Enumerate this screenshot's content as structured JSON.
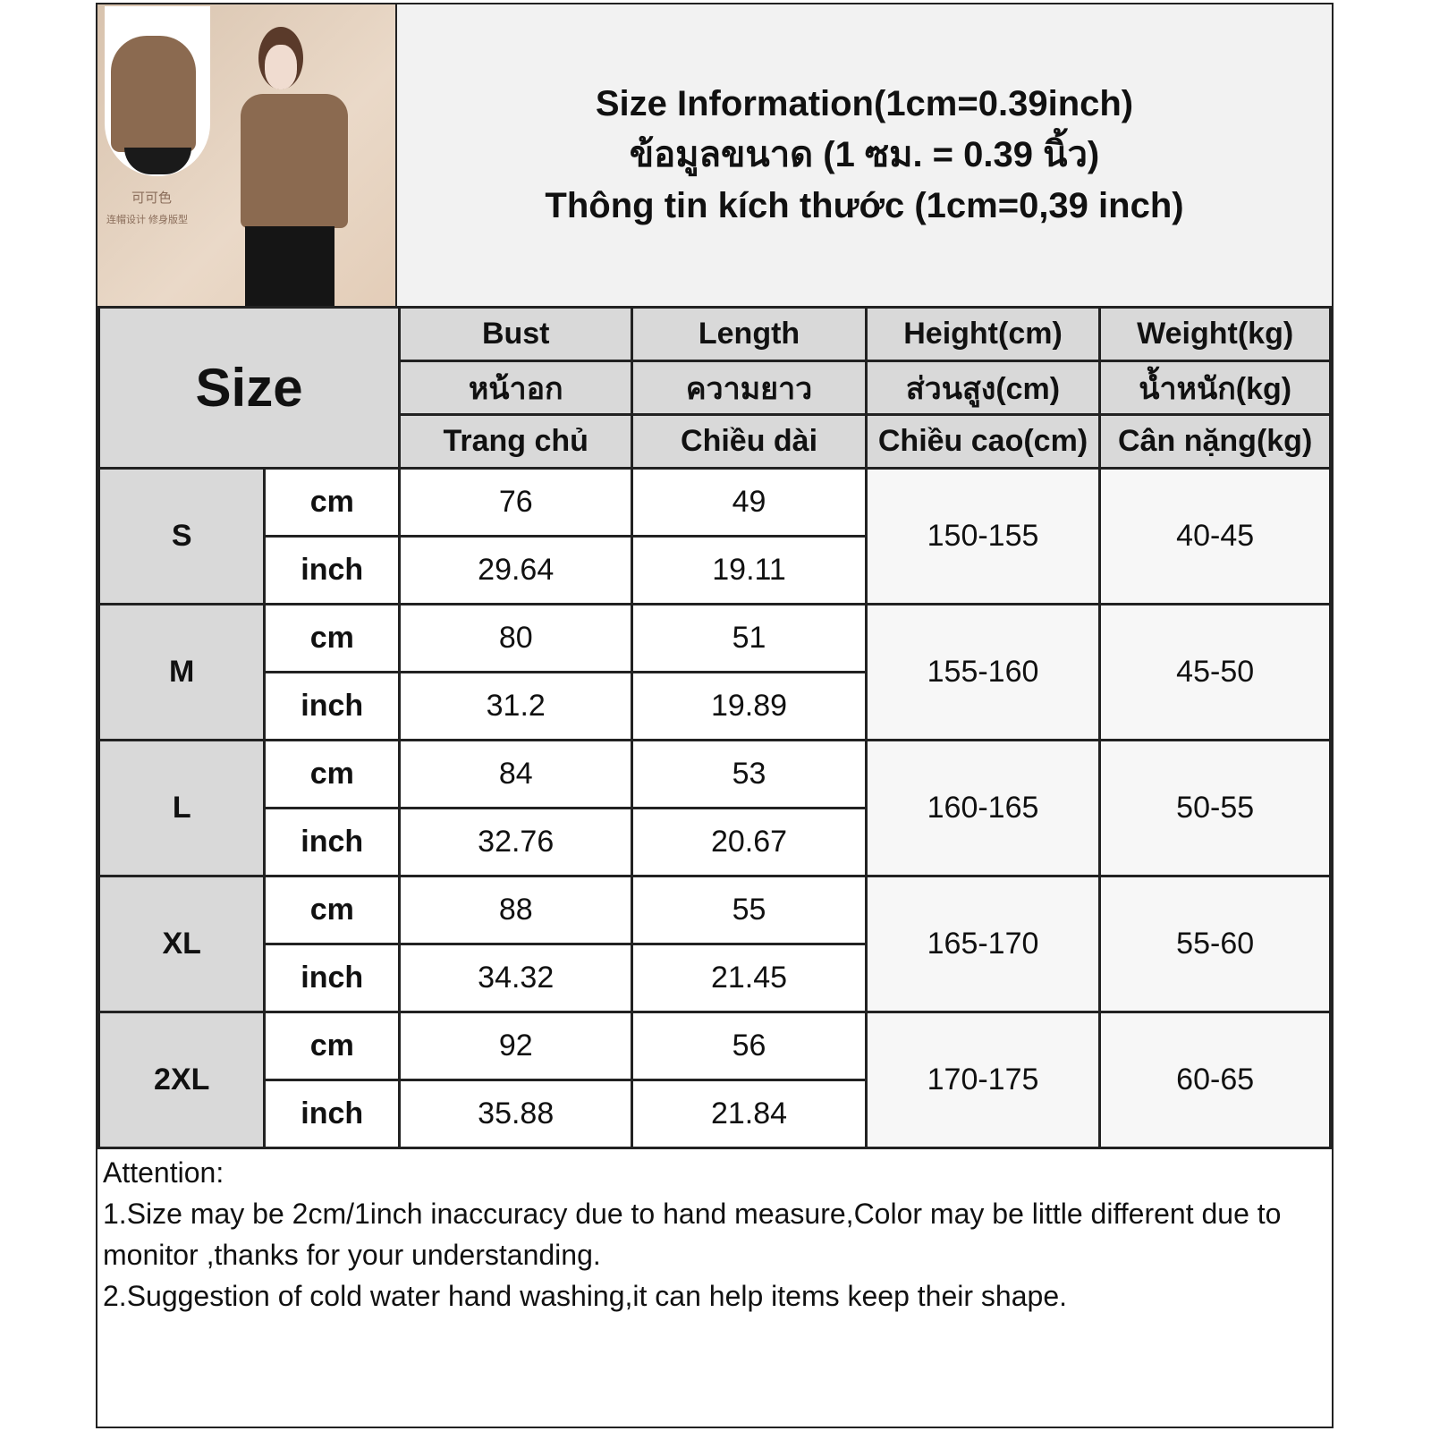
{
  "title": {
    "line_en": "Size Information(1cm=0.39inch)",
    "line_th": "ข้อมูลขนาด (1 ซม. = 0.39 นิ้ว)",
    "line_vi": "Thông tin kích thước (1cm=0,39 inch)"
  },
  "photo": {
    "caption1": "可可色",
    "caption2": "连帽设计 修身版型"
  },
  "header": {
    "size": "Size",
    "columns": [
      {
        "en": "Bust",
        "th": "หน้าอก",
        "vi": "Trang chủ"
      },
      {
        "en": "Length",
        "th": "ความยาว",
        "vi": "Chiều dài"
      },
      {
        "en": "Height(cm)",
        "th": "ส่วนสูง(cm)",
        "vi": "Chiều cao(cm)"
      },
      {
        "en": "Weight(kg)",
        "th": "น้ำหนัก(kg)",
        "vi": "Cân nặng(kg)"
      }
    ]
  },
  "units": {
    "cm": "cm",
    "inch": "inch"
  },
  "rows": [
    {
      "size": "S",
      "bust_cm": "76",
      "length_cm": "49",
      "bust_in": "29.64",
      "length_in": "19.11",
      "height": "150-155",
      "weight": "40-45"
    },
    {
      "size": "M",
      "bust_cm": "80",
      "length_cm": "51",
      "bust_in": "31.2",
      "length_in": "19.89",
      "height": "155-160",
      "weight": "45-50"
    },
    {
      "size": "L",
      "bust_cm": "84",
      "length_cm": "53",
      "bust_in": "32.76",
      "length_in": "20.67",
      "height": "160-165",
      "weight": "50-55"
    },
    {
      "size": "XL",
      "bust_cm": "88",
      "length_cm": "55",
      "bust_in": "34.32",
      "length_in": "21.45",
      "height": "165-170",
      "weight": "55-60"
    },
    {
      "size": "2XL",
      "bust_cm": "92",
      "length_cm": "56",
      "bust_in": "35.88",
      "length_in": "21.84",
      "height": "170-175",
      "weight": "60-65"
    }
  ],
  "attention": {
    "heading": "Attention:",
    "note1": "1.Size may be 2cm/1inch inaccuracy due to hand measure,Color may be little different due to monitor ,thanks for your understanding.",
    "note2": "2.Suggestion of cold water hand washing,it can help items keep their shape."
  }
}
